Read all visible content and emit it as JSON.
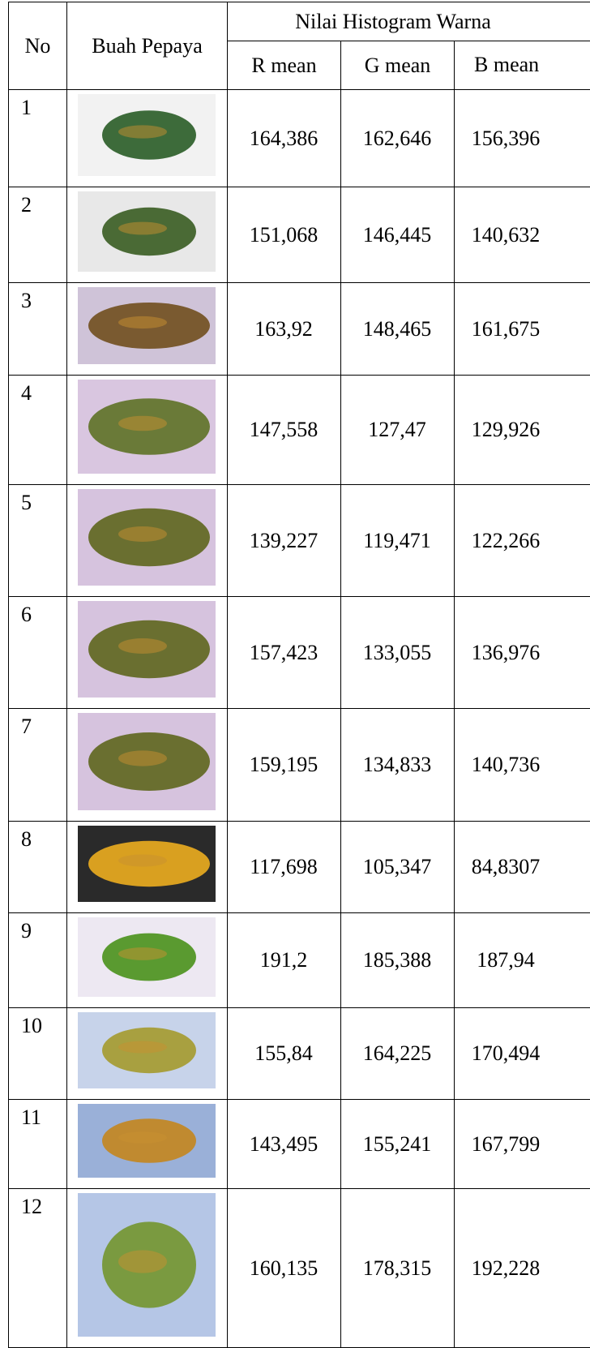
{
  "table": {
    "header": {
      "no": "No",
      "fruit": "Buah Pepaya",
      "group": "Nilai Histogram Warna",
      "r": "R mean",
      "g": "G mean",
      "b": "B mean"
    },
    "rows": [
      [
        "1",
        "164,386",
        "162,646",
        "156,396"
      ],
      [
        "2",
        "151,068",
        "146,445",
        "140,632"
      ],
      [
        "3",
        "163,92",
        "148,465",
        "161,675"
      ],
      [
        "4",
        "147,558",
        "127,47",
        "129,926"
      ],
      [
        "5",
        "139,227",
        "119,471",
        "122,266"
      ],
      [
        "6",
        "157,423",
        "133,055",
        "136,976"
      ],
      [
        "7",
        "159,195",
        "134,833",
        "140,736"
      ],
      [
        "8",
        "117,698",
        "105,347",
        "84,8307"
      ],
      [
        "9",
        "191,2",
        "185,388",
        "187,94"
      ],
      [
        "10",
        "155,84",
        "164,225",
        "170,494"
      ],
      [
        "11",
        "143,495",
        "155,241",
        "167,799"
      ],
      [
        "12",
        "160,135",
        "178,315",
        "192,228"
      ]
    ]
  }
}
